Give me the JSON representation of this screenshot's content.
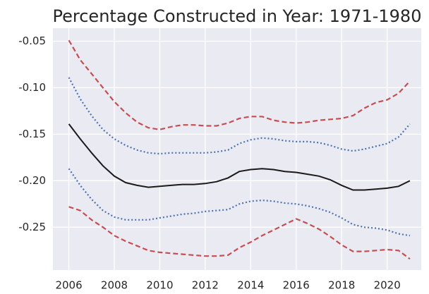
{
  "chart_data": {
    "type": "line",
    "title": "Percentage Constructed in Year: 1971-1980",
    "x": [
      2006,
      2006.5,
      2007,
      2007.5,
      2008,
      2008.5,
      2009,
      2009.5,
      2010,
      2010.5,
      2011,
      2011.5,
      2012,
      2012.5,
      2013,
      2013.5,
      2014,
      2014.5,
      2015,
      2015.5,
      2016,
      2016.5,
      2017,
      2017.5,
      2018,
      2018.5,
      2019,
      2019.5,
      2020,
      2020.5,
      2021
    ],
    "series": [
      {
        "color": "#c44e52",
        "style": "dashed",
        "values": [
          -0.049,
          -0.07,
          -0.085,
          -0.1,
          -0.115,
          -0.127,
          -0.137,
          -0.143,
          -0.145,
          -0.142,
          -0.14,
          -0.14,
          -0.141,
          -0.141,
          -0.138,
          -0.133,
          -0.131,
          -0.131,
          -0.135,
          -0.137,
          -0.138,
          -0.137,
          -0.135,
          -0.134,
          -0.133,
          -0.13,
          -0.122,
          -0.116,
          -0.113,
          -0.106,
          -0.093
        ]
      },
      {
        "color": "#4c72b0",
        "style": "dotted",
        "values": [
          -0.089,
          -0.112,
          -0.13,
          -0.145,
          -0.155,
          -0.162,
          -0.167,
          -0.17,
          -0.171,
          -0.17,
          -0.17,
          -0.17,
          -0.17,
          -0.169,
          -0.167,
          -0.16,
          -0.156,
          -0.154,
          -0.155,
          -0.157,
          -0.158,
          -0.158,
          -0.159,
          -0.162,
          -0.166,
          -0.168,
          -0.166,
          -0.163,
          -0.16,
          -0.153,
          -0.139
        ]
      },
      {
        "color": "#1a1a1a",
        "style": "solid",
        "values": [
          -0.139,
          -0.155,
          -0.17,
          -0.184,
          -0.195,
          -0.202,
          -0.205,
          -0.207,
          -0.206,
          -0.205,
          -0.204,
          -0.204,
          -0.203,
          -0.201,
          -0.197,
          -0.19,
          -0.188,
          -0.187,
          -0.188,
          -0.19,
          -0.191,
          -0.193,
          -0.195,
          -0.199,
          -0.205,
          -0.21,
          -0.21,
          -0.209,
          -0.208,
          -0.206,
          -0.2
        ]
      },
      {
        "color": "#4c72b0",
        "style": "dotted",
        "values": [
          -0.187,
          -0.205,
          -0.22,
          -0.232,
          -0.239,
          -0.242,
          -0.242,
          -0.242,
          -0.24,
          -0.238,
          -0.236,
          -0.235,
          -0.233,
          -0.232,
          -0.231,
          -0.225,
          -0.222,
          -0.221,
          -0.222,
          -0.224,
          -0.225,
          -0.227,
          -0.23,
          -0.234,
          -0.24,
          -0.247,
          -0.25,
          -0.251,
          -0.253,
          -0.257,
          -0.259
        ]
      },
      {
        "color": "#c44e52",
        "style": "dashed",
        "values": [
          -0.228,
          -0.232,
          -0.242,
          -0.25,
          -0.259,
          -0.265,
          -0.27,
          -0.275,
          -0.277,
          -0.278,
          -0.279,
          -0.28,
          -0.281,
          -0.281,
          -0.28,
          -0.272,
          -0.266,
          -0.259,
          -0.253,
          -0.247,
          -0.241,
          -0.246,
          -0.252,
          -0.26,
          -0.269,
          -0.276,
          -0.276,
          -0.275,
          -0.274,
          -0.275,
          -0.284
        ]
      }
    ],
    "xlim": [
      2005.3,
      2021.5
    ],
    "xticks": [
      2006,
      2008,
      2010,
      2012,
      2014,
      2016,
      2018,
      2020
    ],
    "ylim": [
      -0.296,
      -0.036
    ],
    "yticks": [
      -0.05,
      {
        "value": -0.1,
        "label": "-0.10"
      },
      -0.15,
      {
        "value": -0.2,
        "label": "-0.20"
      },
      -0.25
    ],
    "grid": true,
    "background": "#eaeaf2"
  }
}
